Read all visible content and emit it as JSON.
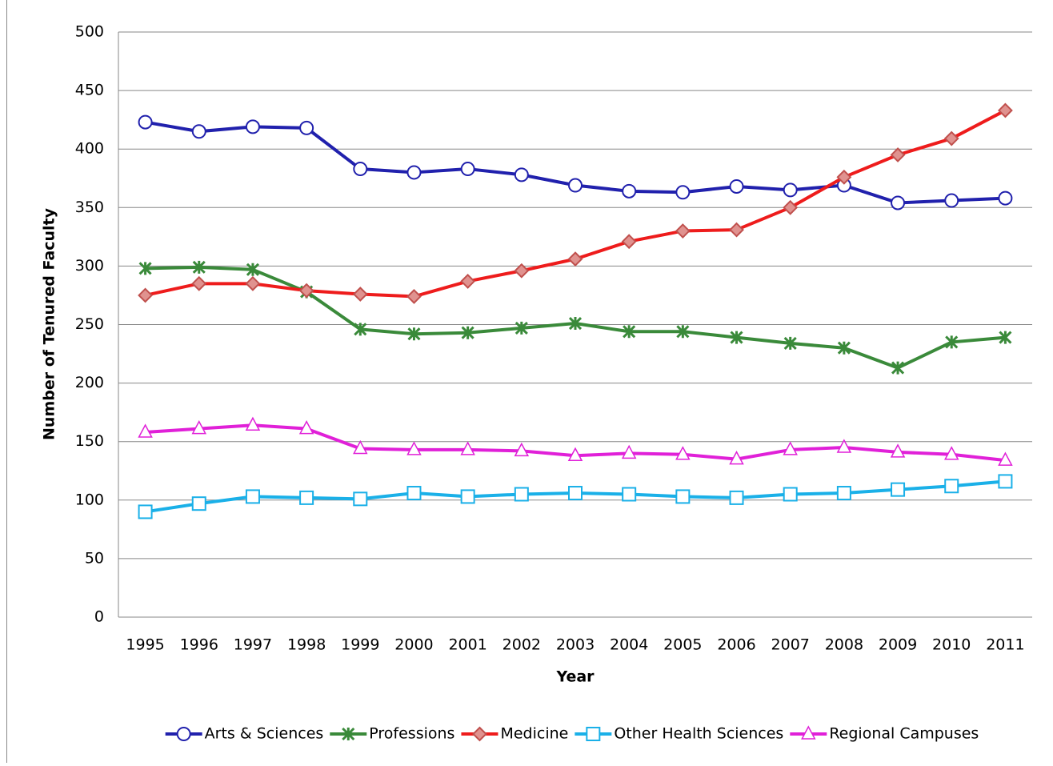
{
  "chart_data": {
    "type": "line",
    "x_label": "Year",
    "y_label": "Number of Tenured Faculty",
    "categories": [
      "1995",
      "1996",
      "1997",
      "1998",
      "1999",
      "2000",
      "2001",
      "2002",
      "2003",
      "2004",
      "2005",
      "2006",
      "2007",
      "2008",
      "2009",
      "2010",
      "2011"
    ],
    "ylim": [
      0,
      500
    ],
    "yticks": [
      0,
      50,
      100,
      150,
      200,
      250,
      300,
      350,
      400,
      450,
      500
    ],
    "grid": true,
    "legend": "bottom",
    "series": [
      {
        "name": "Arts & Sciences",
        "color": "#2121ad",
        "marker": "circle",
        "marker_color": "#2121ad",
        "values": [
          423,
          415,
          419,
          418,
          383,
          380,
          383,
          378,
          369,
          364,
          363,
          368,
          365,
          369,
          354,
          356,
          358
        ]
      },
      {
        "name": "Professions",
        "color": "#3a8a3a",
        "marker": "star",
        "marker_color": "#3a8a3a",
        "values": [
          298,
          299,
          297,
          278,
          246,
          242,
          243,
          247,
          251,
          244,
          244,
          239,
          234,
          230,
          213,
          235,
          239
        ]
      },
      {
        "name": "Medicine",
        "color": "#ee1c1c",
        "marker": "diamond",
        "marker_color": "#c0504d",
        "values": [
          275,
          285,
          285,
          279,
          276,
          274,
          287,
          296,
          306,
          321,
          330,
          331,
          350,
          376,
          395,
          409,
          433
        ]
      },
      {
        "name": "Other Health Sciences",
        "color": "#1ab0e8",
        "marker": "square",
        "marker_color": "#1ab0e8",
        "values": [
          90,
          97,
          103,
          102,
          101,
          106,
          103,
          105,
          106,
          105,
          103,
          102,
          105,
          106,
          109,
          112,
          116
        ]
      },
      {
        "name": "Regional Campuses",
        "color": "#e020d8",
        "marker": "triangle",
        "marker_color": "#e020d8",
        "values": [
          158,
          161,
          164,
          161,
          144,
          143,
          143,
          142,
          138,
          140,
          139,
          135,
          143,
          145,
          141,
          139,
          134
        ]
      }
    ]
  }
}
